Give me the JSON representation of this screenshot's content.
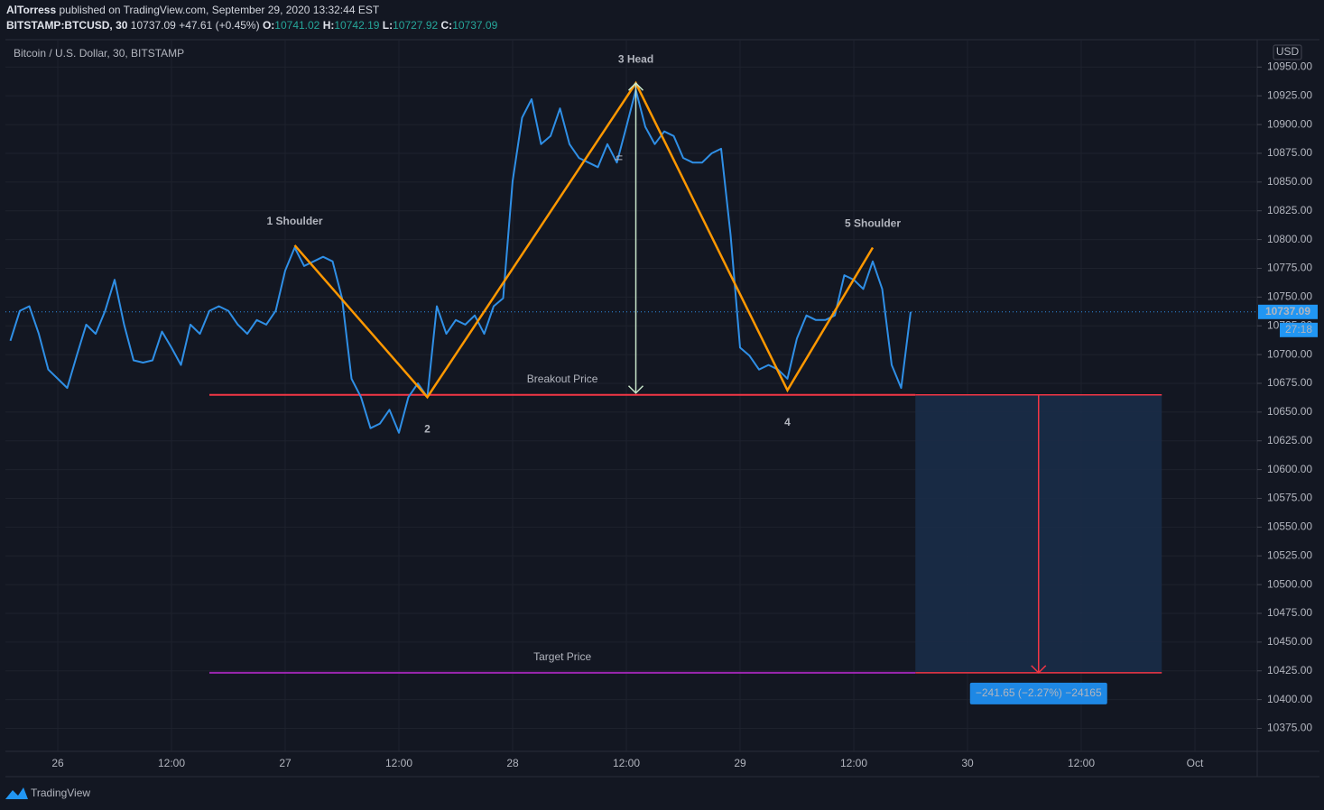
{
  "header": {
    "author": "AlTorress",
    "published": "published on TradingView.com, September 29, 2020 13:32:44 EST",
    "symbol": "BITSTAMP:BTCUSD, 30",
    "last": 10737.09,
    "change": "+47.61 (+0.45%)",
    "ohlc": [
      {
        "label": "O:",
        "value": 10741.02
      },
      {
        "label": "H:",
        "value": 10742.19
      },
      {
        "label": "L:",
        "value": 10727.92
      },
      {
        "label": "C:",
        "value": 10737.09
      }
    ]
  },
  "chart_data": {
    "type": "line",
    "subtitle": "Bitcoin / U.S. Dollar, 30, BITSTAMP",
    "currency": "USD",
    "countdown": "27:18",
    "color": "#2f8fe6",
    "categories": [
      null,
      null,
      null,
      null,
      null,
      "26",
      null,
      null,
      null,
      null,
      null,
      null,
      null,
      null,
      null,
      null,
      null,
      "12:00",
      null,
      null,
      null,
      null,
      null,
      null,
      null,
      null,
      null,
      null,
      null,
      "27",
      null,
      null,
      null,
      null,
      null,
      null,
      null,
      null,
      null,
      null,
      null,
      "12:00",
      null,
      null,
      null,
      null,
      null,
      null,
      null,
      null,
      null,
      null,
      null,
      "28",
      null,
      null,
      null,
      null,
      null,
      null,
      null,
      null,
      null,
      null,
      null,
      "12:00",
      null,
      null,
      null,
      null,
      null,
      null,
      null,
      null,
      null,
      null,
      null,
      "29",
      null,
      null,
      null,
      null,
      null,
      null,
      null,
      null,
      null,
      null,
      null,
      "12:00",
      null,
      null,
      null,
      null,
      null,
      null,
      null,
      null,
      null,
      null,
      null,
      "30",
      null,
      null,
      null,
      null,
      null,
      null,
      null,
      null,
      null,
      null,
      null,
      "12:00",
      null,
      null,
      null,
      null,
      null,
      null,
      null,
      null,
      null,
      null,
      null,
      "Oct",
      null,
      null,
      null,
      null,
      null,
      null
    ],
    "values": [
      10712,
      10738,
      10742,
      10718,
      10687,
      10679,
      10671,
      10699,
      10726,
      10718,
      10738,
      10765,
      10726,
      10695,
      10693,
      10695,
      10720,
      10706,
      10691,
      10726,
      10718,
      10738,
      10742,
      10738,
      10726,
      10718,
      10730,
      10726,
      10738,
      10773,
      10793,
      10777,
      10781,
      10785,
      10781,
      10749,
      10679,
      10663,
      10636,
      10640,
      10652,
      10632,
      10663,
      10675,
      10663,
      10742,
      10718,
      10730,
      10726,
      10734,
      10718,
      10742,
      10749,
      10851,
      10906,
      10922,
      10883,
      10890,
      10914,
      10883,
      10871,
      10867,
      10863,
      10883,
      10867,
      10898,
      10930,
      10898,
      10883,
      10894,
      10890,
      10871,
      10867,
      10867,
      10875,
      10879,
      10804,
      10706,
      10699,
      10687,
      10691,
      10687,
      10679,
      10714,
      10734,
      10730,
      10730,
      10734,
      10769,
      10765,
      10757,
      10781,
      10757,
      10691,
      10671,
      10737.09,
      null,
      null,
      null,
      null,
      null,
      null,
      null,
      null,
      null,
      null,
      null,
      null,
      null,
      null,
      null,
      null,
      null,
      null,
      null,
      null,
      null,
      null,
      null,
      null,
      null,
      null,
      null,
      null,
      null,
      null,
      null,
      null,
      null,
      null,
      null,
      null
    ],
    "ylim": [
      10355,
      10973
    ],
    "yticks": [
      {
        "value": 10375,
        "label": "10375.00"
      },
      {
        "value": 10400,
        "label": "10400.00"
      },
      {
        "value": 10425,
        "label": "10425.00"
      },
      {
        "value": 10450,
        "label": "10450.00"
      },
      {
        "value": 10475,
        "label": "10475.00"
      },
      {
        "value": 10500,
        "label": "10500.00"
      },
      {
        "value": 10525,
        "label": "10525.00"
      },
      {
        "value": 10550,
        "label": "10550.00"
      },
      {
        "value": 10575,
        "label": "10575.00"
      },
      {
        "value": 10600,
        "label": "10600.00"
      },
      {
        "value": 10625,
        "label": "10625.00"
      },
      {
        "value": 10650,
        "label": "10650.00"
      },
      {
        "value": 10675,
        "label": "10675.00"
      },
      {
        "value": 10700,
        "label": "10700.00"
      },
      {
        "value": 10725,
        "label": "10725.00"
      },
      {
        "value": 10750,
        "label": "10750.00"
      },
      {
        "value": 10775,
        "label": "10775.00"
      },
      {
        "value": 10800,
        "label": "10800.00"
      },
      {
        "value": 10825,
        "label": "10825.00"
      },
      {
        "value": 10850,
        "label": "10850.00"
      },
      {
        "value": 10875,
        "label": "10875.00"
      },
      {
        "value": 10900,
        "label": "10900.00"
      },
      {
        "value": 10925,
        "label": "10925.00"
      },
      {
        "value": 10950,
        "label": "10950.00"
      }
    ],
    "grid": true,
    "pattern": {
      "color": "#ff9800",
      "points": [
        {
          "label": "1 Shoulder",
          "index": 30,
          "value": 10795
        },
        {
          "label": "2",
          "index": 44,
          "value": 10663
        },
        {
          "label": "3 Head",
          "index": 66,
          "value": 10936
        },
        {
          "label": "4",
          "index": 82,
          "value": 10669
        },
        {
          "label": "5 Shoulder",
          "index": 91,
          "value": 10793
        }
      ]
    },
    "breakout": {
      "label": "Breakout Price",
      "value": 10665,
      "color": "#f23645",
      "start": 21,
      "end": 95.5
    },
    "target": {
      "label": "Target Price",
      "value": 10423.35,
      "color": "#9c27b0",
      "start": 21,
      "end": 95.5
    },
    "height_label": "h",
    "projection": {
      "label": "−241.65 (−2.27%) −24165",
      "start": 95.5,
      "end": 121.5,
      "arrow_at": 108.5
    }
  },
  "footer": "TradingView"
}
